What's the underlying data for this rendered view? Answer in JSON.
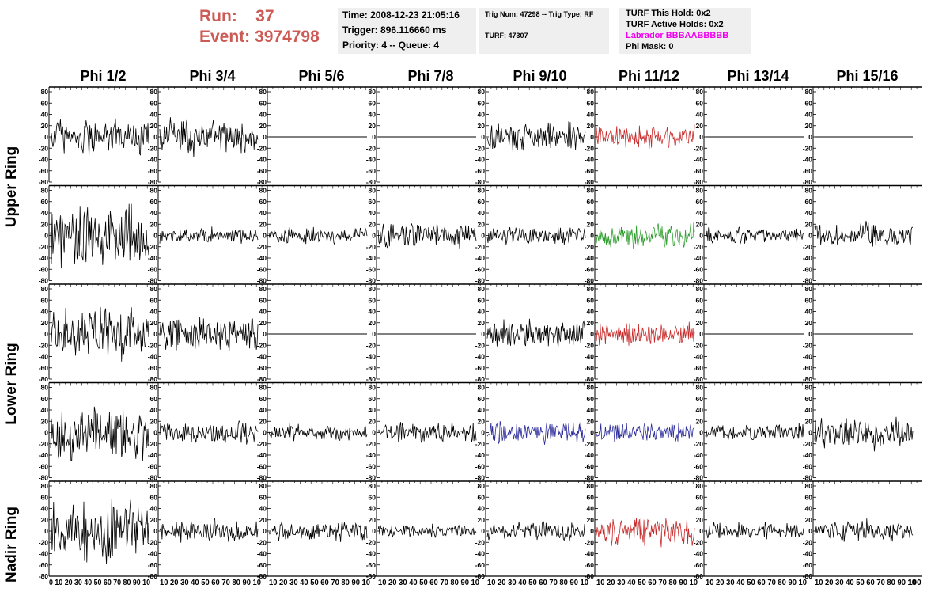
{
  "header": {
    "run_label": "Run:",
    "run_value": "37",
    "event_label": "Event:",
    "event_value": "3974798",
    "time": "Time: 2008-12-23 21:05:16",
    "trigger": "Trigger: 896.116660 ms",
    "priority": "Priority: 4 -- Queue: 4",
    "trig_num": "Trig Num: 47298 -- Trig Type: RF",
    "turf": "TURF: 47307",
    "turf_this_hold": "TURF This Hold: 0x2",
    "turf_active_holds": "TURF Active Holds: 0x2",
    "labrador": "Labrador BBBAABBBBB",
    "phi_mask": "Phi Mask: 0"
  },
  "columns": [
    "Phi 1/2",
    "Phi 3/4",
    "Phi 5/6",
    "Phi 7/8",
    "Phi 9/10",
    "Phi 11/12",
    "Phi 13/14",
    "Phi 15/16"
  ],
  "rings": [
    "Upper Ring",
    "Lower Ring",
    "Nadir Ring"
  ],
  "colors": {
    "trace_default": "#000000",
    "trace_red": "#c62828",
    "trace_green": "#2e9e2e",
    "trace_blue": "#2a2a9a",
    "run_text": "#cd5b55",
    "labrador_text": "#f000f0",
    "panel_bg": "#efefef"
  },
  "chart_data": {
    "type": "line",
    "xlim": [
      0,
      100
    ],
    "ylim": [
      -80,
      80
    ],
    "x_ticks": [
      0,
      10,
      20,
      30,
      40,
      50,
      60,
      70,
      80,
      90,
      100
    ],
    "y_ticks": [
      -80,
      -60,
      -40,
      -20,
      0,
      20,
      40,
      60,
      80
    ],
    "y_tick_labels": [
      "-80",
      "-60",
      "-40",
      "-20",
      "0",
      "20",
      "40",
      "60",
      "80"
    ],
    "x_tick_labels_first_column": "0 10 20 30 40 50 60 70 80 90 10",
    "x_tick_labels_other_columns": "10 20 30 40 50 60 70 80 90 10",
    "x_tick_label_last": "100",
    "panel_rows": [
      {
        "panels": [
          {
            "amp": 33,
            "color": "black",
            "flat": false
          },
          {
            "amp": 33,
            "color": "black",
            "flat": false
          },
          {
            "amp": 0,
            "color": "black",
            "flat": true
          },
          {
            "amp": 0,
            "color": "black",
            "flat": true
          },
          {
            "amp": 25,
            "color": "black",
            "flat": false
          },
          {
            "amp": 20,
            "color": "red",
            "flat": false
          },
          {
            "amp": 0,
            "color": "black",
            "flat": true
          },
          {
            "amp": 0,
            "color": "black",
            "flat": true
          }
        ]
      },
      {
        "panels": [
          {
            "amp": 55,
            "color": "black",
            "flat": false
          },
          {
            "amp": 14,
            "color": "black",
            "flat": false
          },
          {
            "amp": 14,
            "color": "black",
            "flat": false
          },
          {
            "amp": 22,
            "color": "black",
            "flat": false
          },
          {
            "amp": 16,
            "color": "black",
            "flat": false
          },
          {
            "amp": 22,
            "color": "green",
            "flat": false
          },
          {
            "amp": 14,
            "color": "black",
            "flat": false
          },
          {
            "amp": 22,
            "color": "black",
            "flat": false
          }
        ]
      },
      {
        "panels": [
          {
            "amp": 50,
            "color": "black",
            "flat": false
          },
          {
            "amp": 30,
            "color": "black",
            "flat": false
          },
          {
            "amp": 0,
            "color": "black",
            "flat": true
          },
          {
            "amp": 0,
            "color": "black",
            "flat": true
          },
          {
            "amp": 25,
            "color": "black",
            "flat": false
          },
          {
            "amp": 20,
            "color": "red",
            "flat": false
          },
          {
            "amp": 0,
            "color": "black",
            "flat": true
          },
          {
            "amp": 0,
            "color": "black",
            "flat": true
          }
        ]
      },
      {
        "panels": [
          {
            "amp": 50,
            "color": "black",
            "flat": false
          },
          {
            "amp": 20,
            "color": "black",
            "flat": false
          },
          {
            "amp": 14,
            "color": "black",
            "flat": false
          },
          {
            "amp": 18,
            "color": "black",
            "flat": false
          },
          {
            "amp": 20,
            "color": "blue",
            "flat": false
          },
          {
            "amp": 18,
            "color": "blue",
            "flat": false
          },
          {
            "amp": 14,
            "color": "black",
            "flat": false
          },
          {
            "amp": 28,
            "color": "black",
            "flat": false
          }
        ]
      },
      {
        "panels": [
          {
            "amp": 55,
            "color": "black",
            "flat": false
          },
          {
            "amp": 20,
            "color": "black",
            "flat": false
          },
          {
            "amp": 18,
            "color": "black",
            "flat": false
          },
          {
            "amp": 12,
            "color": "black",
            "flat": false
          },
          {
            "amp": 16,
            "color": "black",
            "flat": false
          },
          {
            "amp": 26,
            "color": "red",
            "flat": false
          },
          {
            "amp": 14,
            "color": "black",
            "flat": false
          },
          {
            "amp": 18,
            "color": "black",
            "flat": false
          }
        ]
      }
    ]
  }
}
